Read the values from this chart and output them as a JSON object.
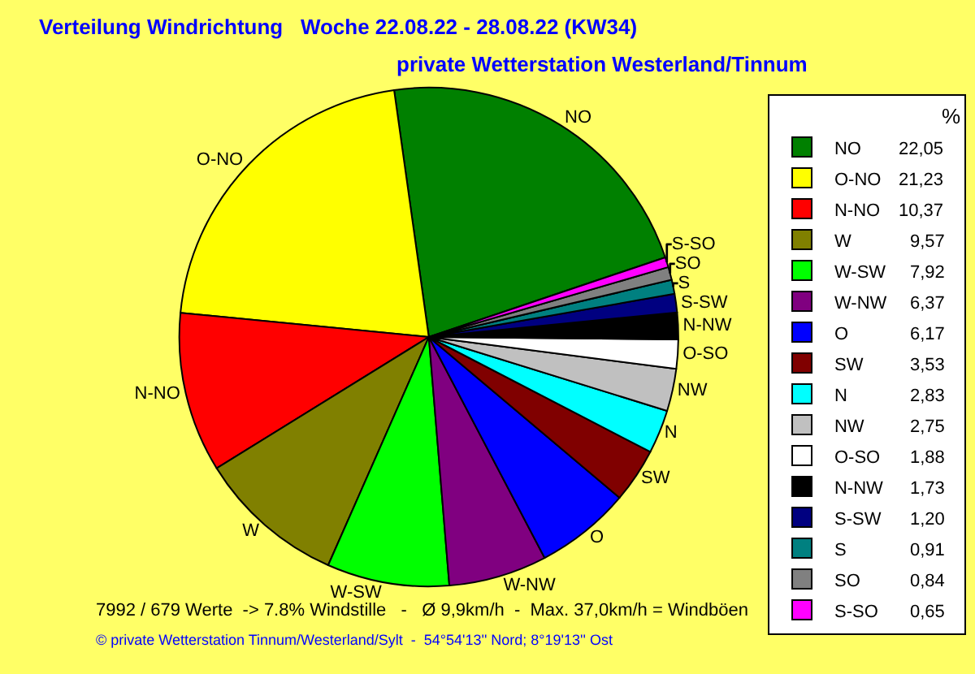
{
  "chart_data": {
    "type": "pie",
    "title": "Verteilung Windrichtung   Woche 22.08.22 - 28.08.22 (KW34)",
    "subtitle": "private Wetterstation Westerland/Tinnum",
    "legend_title": "%",
    "legend": "right",
    "categories": [
      "NO",
      "O-NO",
      "N-NO",
      "W",
      "W-SW",
      "W-NW",
      "O",
      "SW",
      "N",
      "NW",
      "O-SO",
      "N-NW",
      "S-SW",
      "S",
      "SO",
      "S-SO"
    ],
    "values": [
      22.05,
      21.23,
      10.37,
      9.57,
      7.92,
      6.37,
      6.17,
      3.53,
      2.83,
      2.75,
      1.88,
      1.73,
      1.2,
      0.91,
      0.84,
      0.65
    ],
    "value_labels": [
      "22,05",
      "21,23",
      "10,37",
      "9,57",
      "7,92",
      "6,37",
      "6,17",
      "3,53",
      "2,83",
      "2,75",
      "1,88",
      "1,73",
      "1,20",
      "0,91",
      "0,84",
      "0,65"
    ],
    "colors": [
      "#008000",
      "#ffff00",
      "#ff0000",
      "#808000",
      "#00ff00",
      "#800080",
      "#0000ff",
      "#800000",
      "#00ffff",
      "#c0c0c0",
      "#ffffff",
      "#000000",
      "#000080",
      "#008080",
      "#808080",
      "#ff00ff"
    ],
    "annotations": [
      "7992 / 679 Werte  -> 7.8% Windstille   -   Ø 9,9km/h  -  Max. 37,0km/h = Windböen",
      "© private Wetterstation Tinnum/Westerland/Sylt  -  54°54'13'' Nord; 8°19'13'' Ost"
    ]
  }
}
